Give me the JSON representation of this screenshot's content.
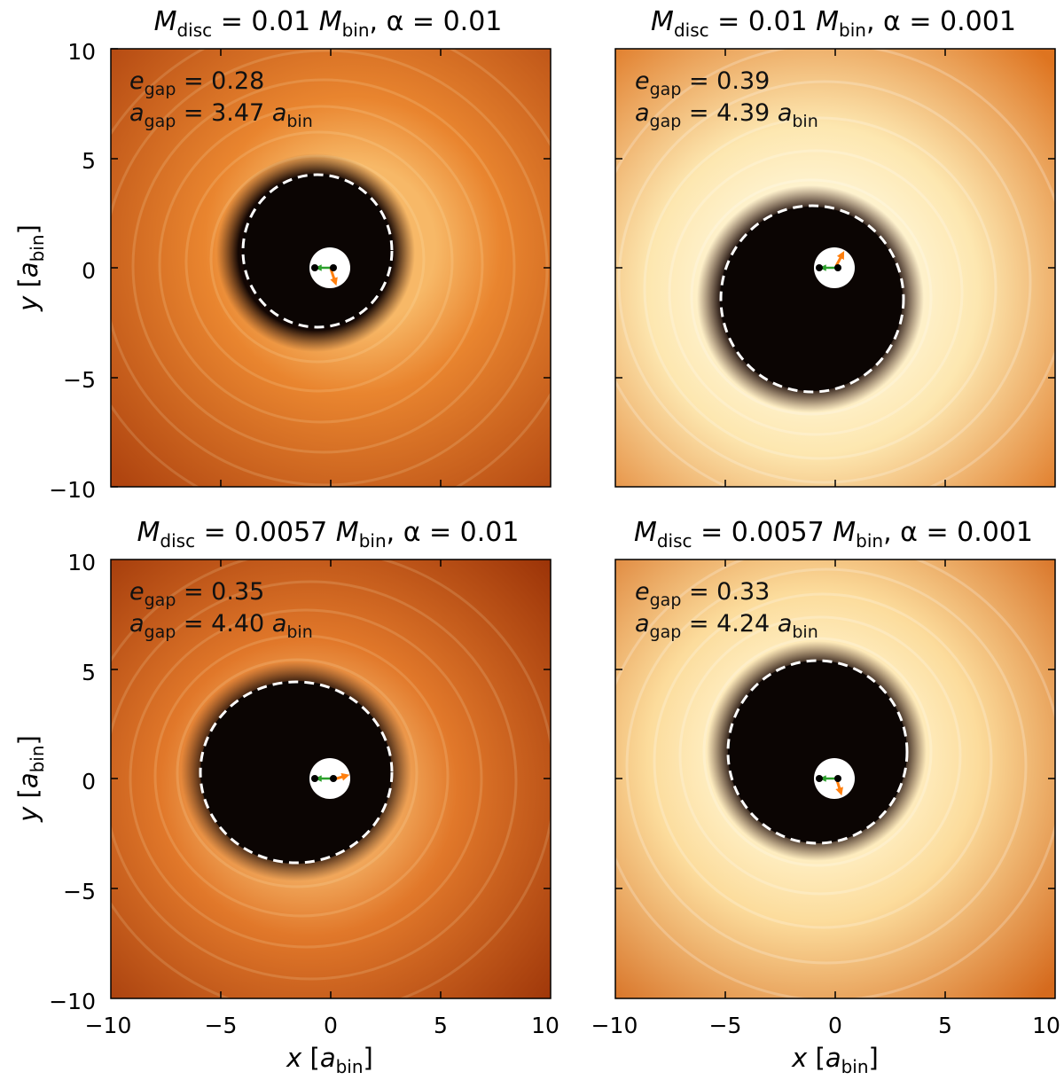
{
  "figure": {
    "x_axis": {
      "symbol": "x",
      "unit_prefix": "a",
      "unit_sub": "bin",
      "ticks": [
        "−10",
        "−5",
        "0",
        "5",
        "10"
      ]
    },
    "y_axis": {
      "symbol": "y",
      "unit_prefix": "a",
      "unit_sub": "bin",
      "ticks": [
        "10",
        "5",
        "0",
        "−5",
        "−10"
      ]
    },
    "panels": [
      {
        "title": {
          "m": "M",
          "m_sub": "disc",
          "eq1": " = 0.01 ",
          "mb": "M",
          "mb_sub": "bin",
          "alpha": ",  α = 0.01"
        },
        "e_gap": {
          "sym": "e",
          "sub": "gap",
          "value": " = 0.28"
        },
        "a_gap": {
          "sym": "a",
          "sub": "gap",
          "value": " = 3.47 ",
          "unit": "a",
          "unit_sub": "bin"
        },
        "palette": {
          "outer": "#b04510",
          "inner": "#e9852f",
          "glow": "#f7b867"
        }
      },
      {
        "title": {
          "m": "M",
          "m_sub": "disc",
          "eq1": " = 0.01 ",
          "mb": "M",
          "mb_sub": "bin",
          "alpha": ",  α = 0.001"
        },
        "e_gap": {
          "sym": "e",
          "sub": "gap",
          "value": " = 0.39"
        },
        "a_gap": {
          "sym": "a",
          "sub": "gap",
          "value": " = 4.39 ",
          "unit": "a",
          "unit_sub": "bin"
        },
        "palette": {
          "outer": "#de7420",
          "inner": "#fde7b0",
          "glow": "#fff6d8"
        }
      },
      {
        "title": {
          "m": "M",
          "m_sub": "disc",
          "eq1": " = 0.0057 ",
          "mb": "M",
          "mb_sub": "bin",
          "alpha": ",  α = 0.01"
        },
        "e_gap": {
          "sym": "e",
          "sub": "gap",
          "value": " = 0.35"
        },
        "a_gap": {
          "sym": "a",
          "sub": "gap",
          "value": " = 4.40 ",
          "unit": "a",
          "unit_sub": "bin"
        },
        "palette": {
          "outer": "#9c3408",
          "inner": "#e1782a",
          "glow": "#f3ae62"
        }
      },
      {
        "title": {
          "m": "M",
          "m_sub": "disc",
          "eq1": " = 0.0057 ",
          "mb": "M",
          "mb_sub": "bin",
          "alpha": ",  α = 0.001"
        },
        "e_gap": {
          "sym": "e",
          "sub": "gap",
          "value": " = 0.33"
        },
        "a_gap": {
          "sym": "a",
          "sub": "gap",
          "value": " = 4.24 ",
          "unit": "a",
          "unit_sub": "bin"
        },
        "palette": {
          "outer": "#d56a1d",
          "inner": "#fcdc9c",
          "glow": "#fff3cc"
        }
      }
    ],
    "colors": {
      "gap": "#0b0503",
      "cavity": "#ffffff",
      "dashed": "#ffffff",
      "velocity_arrow": "#ff7f0e",
      "separation_arrow": "#2ca02c",
      "star": "#000000"
    }
  }
}
